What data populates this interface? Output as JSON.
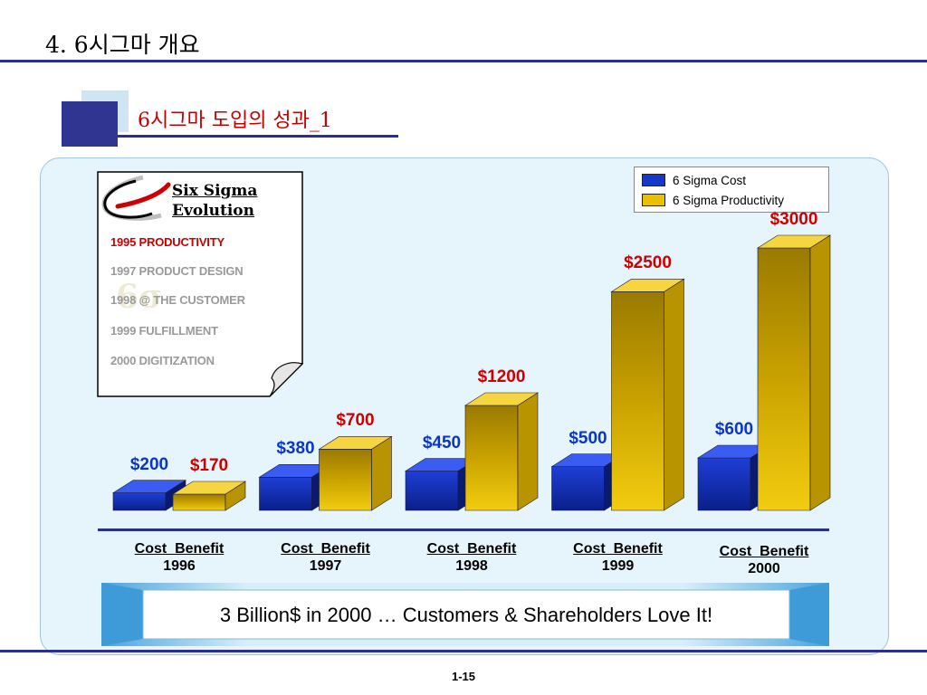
{
  "slide": {
    "title": "4. 6시그마 개요",
    "subtitle": "6시그마 도입의 성과_1",
    "page_number": "1-15",
    "banner_text": "3 Billion$ in 2000 … Customers & Shareholders Love It!"
  },
  "evolution_card": {
    "title_line1": "Six Sigma",
    "title_line2": "Evolution",
    "milestones": [
      {
        "text": "1995  PRODUCTIVITY",
        "color": "#cc0000"
      },
      {
        "text": "1997  PRODUCT DESIGN",
        "color": "#9a9a9a"
      },
      {
        "text": "1998  @ THE CUSTOMER",
        "color": "#9a9a9a"
      },
      {
        "text": "1999  FULFILLMENT",
        "color": "#9a9a9a"
      },
      {
        "text": "2000  DIGITIZATION",
        "color": "#9a9a9a"
      }
    ]
  },
  "colors": {
    "cost": "#1737c8",
    "productivity": "#e8c000",
    "cost_label": "#0b35c9",
    "productivity_label": "#cc0000",
    "accent_blue": "#2b2f8f"
  },
  "chart_data": {
    "type": "bar",
    "categories": [
      "Cost  Benefit\n1996",
      "Cost  Benefit\n1997",
      "Cost  Benefit\n1998",
      "Cost  Benefit\n1999",
      "Cost  Benefit\n2000"
    ],
    "category_lines": [
      [
        "Cost  Benefit",
        "1996"
      ],
      [
        "Cost  Benefit",
        "1997"
      ],
      [
        "Cost  Benefit",
        "1998"
      ],
      [
        "Cost  Benefit",
        "1999"
      ],
      [
        "Cost  Benefit",
        "2000"
      ]
    ],
    "series": [
      {
        "name": "6 Sigma Cost",
        "values": [
          200,
          380,
          450,
          500,
          600
        ],
        "labels": [
          "$200",
          "$380",
          "$450",
          "$500",
          "$600"
        ]
      },
      {
        "name": "6 Sigma Productivity",
        "values": [
          170,
          700,
          1200,
          2500,
          3000
        ],
        "labels": [
          "$170",
          "$700",
          "$1200",
          "$2500",
          "$3000"
        ]
      }
    ],
    "ylim": [
      0,
      3000
    ],
    "grid": false,
    "legend_position": "top-right",
    "style": "3d"
  }
}
